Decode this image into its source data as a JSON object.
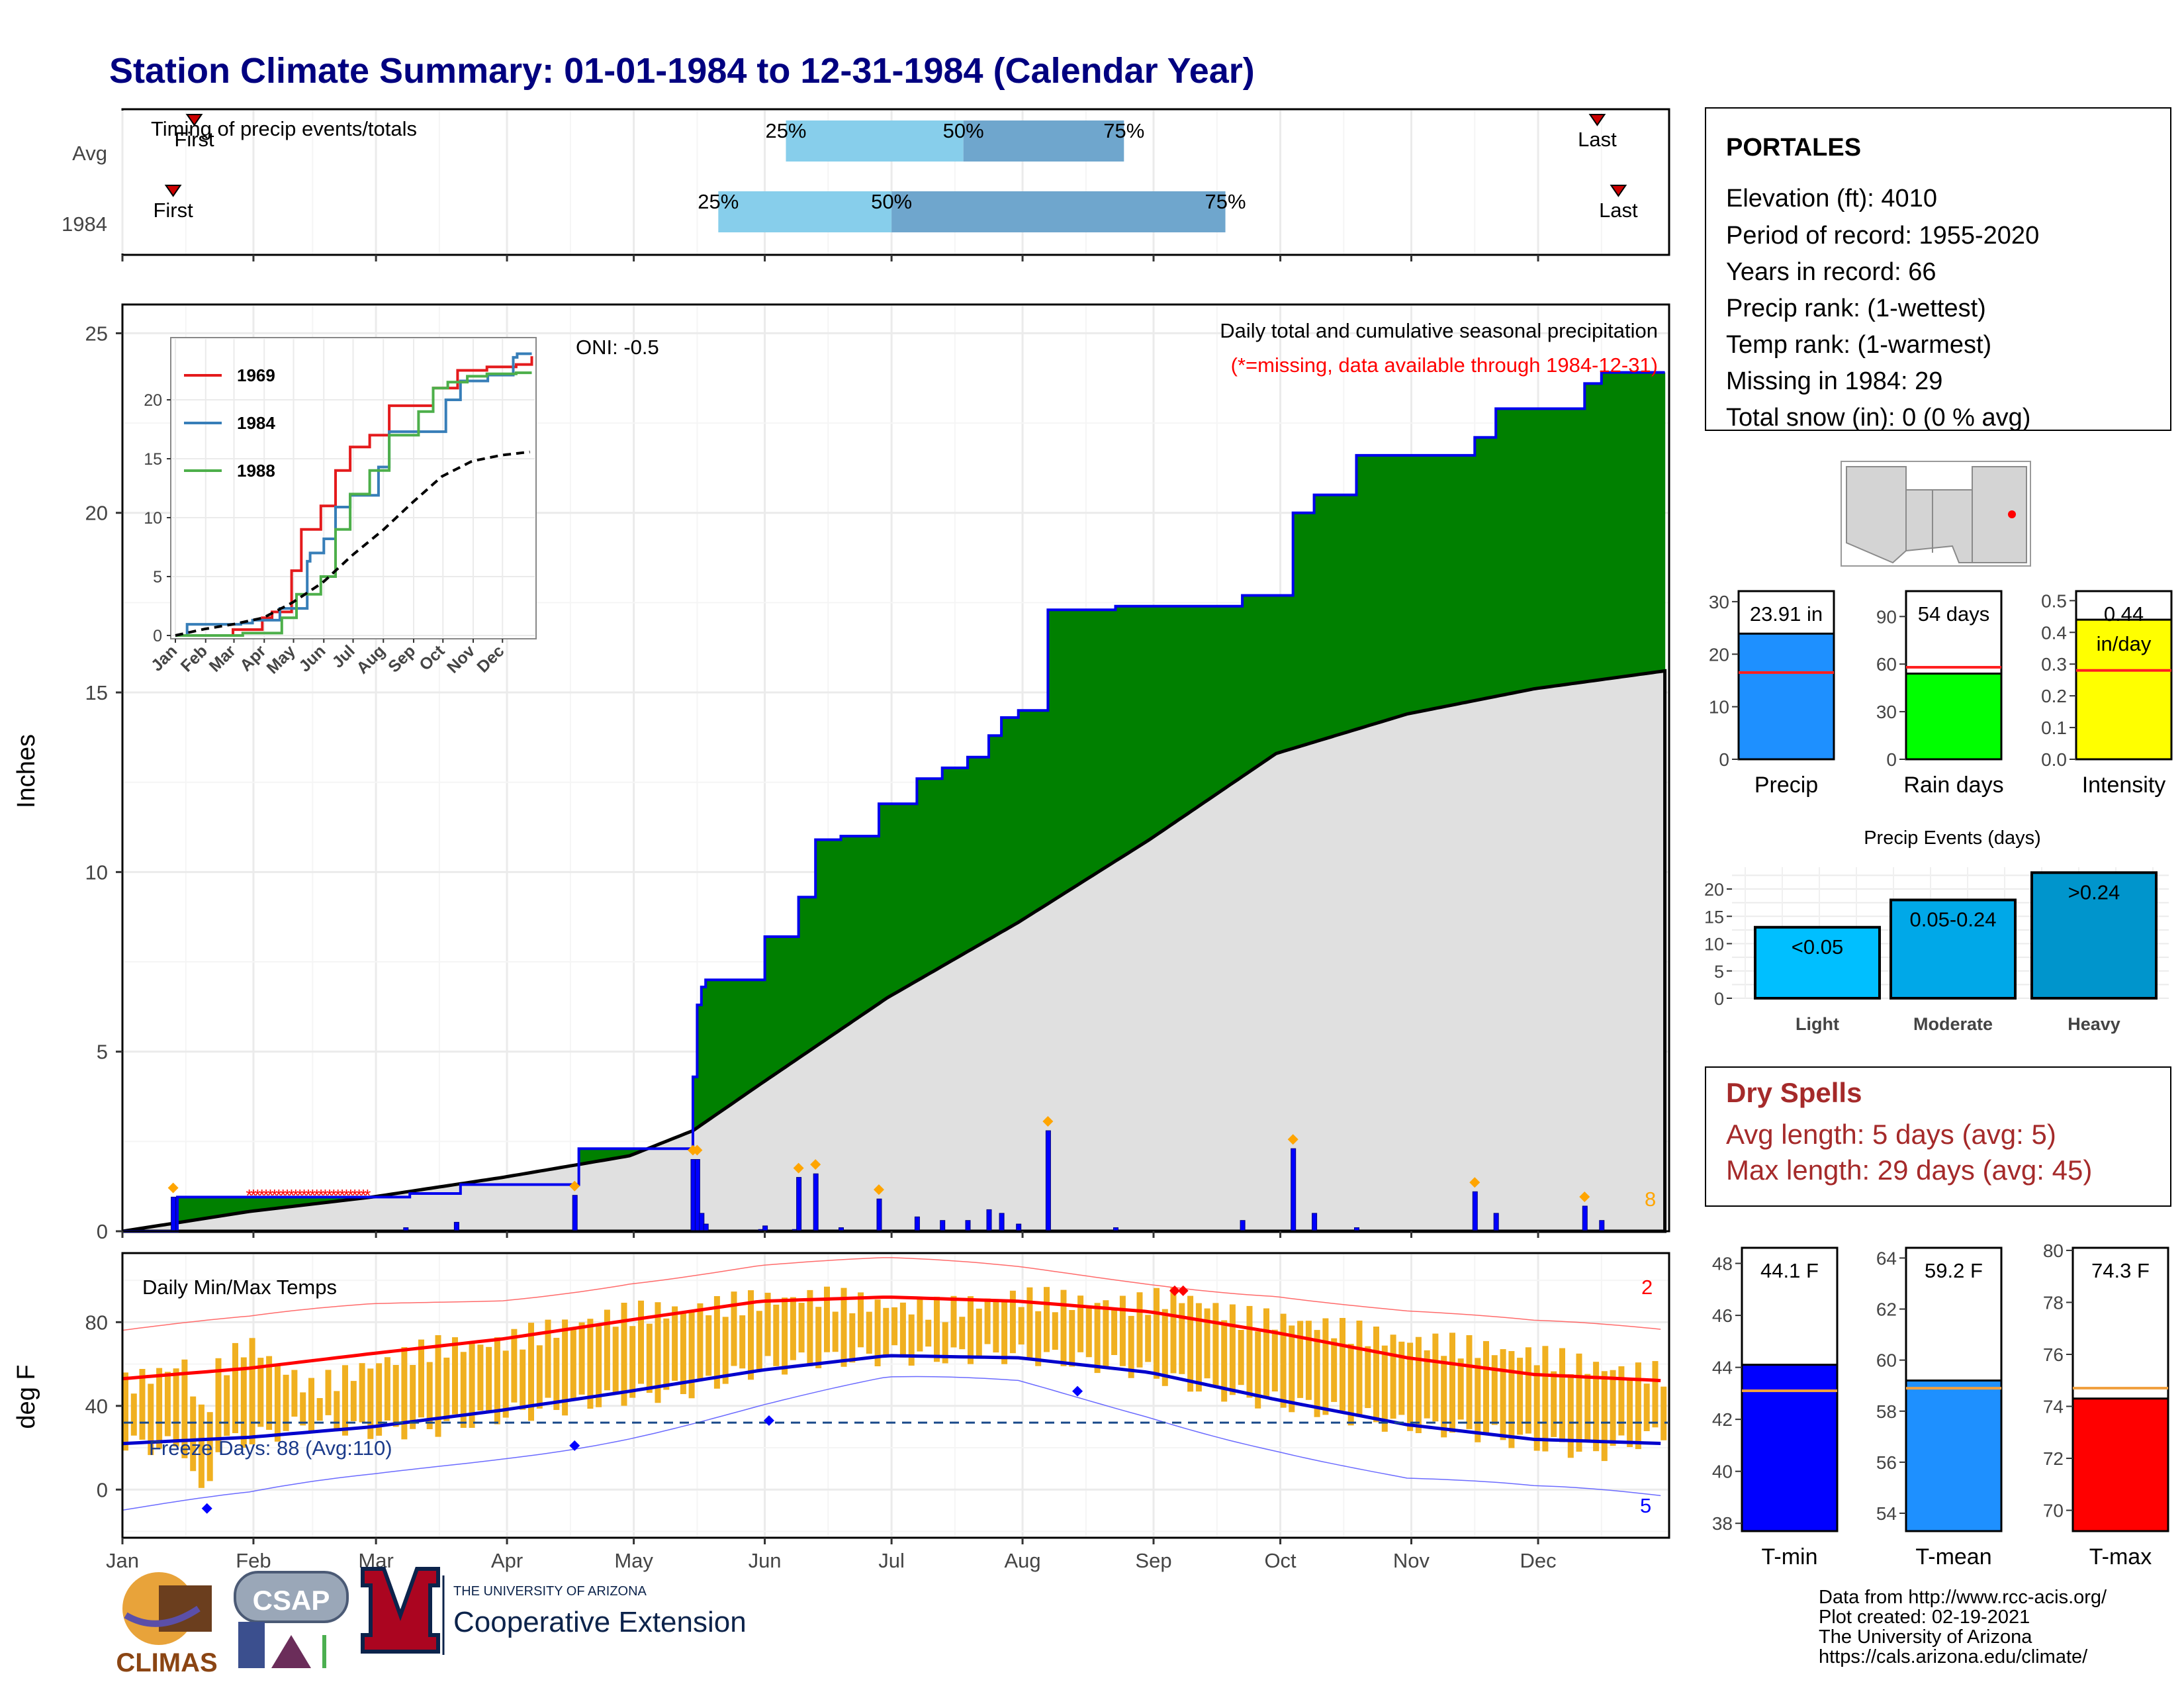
{
  "title": "Station Climate Summary: 01-01-1984 to 12-31-1984 (Calendar Year)",
  "colors": {
    "title": "#000080",
    "cum_precip_fill": "#008000",
    "avg_precip_fill": "#e0e0e0",
    "deficit_fill": "#8b5a00",
    "precip_line": "#0000ee",
    "daily_bar": "#0000ff",
    "temp_bar": "#f0b020",
    "tmax_avg_line": "#ff0000",
    "tmin_avg_line": "#0000cc",
    "marker": "#ffa500",
    "dry_spells": "#a52a2a"
  },
  "timing": {
    "label": "Timing of precip events/totals",
    "rows": [
      {
        "name": "Avg",
        "first": "First",
        "last": "Last",
        "p25": "25%",
        "p50": "50%",
        "p75": "75%",
        "first_doy": 18,
        "p25_doy": 158,
        "p50_doy": 200,
        "p75_doy": 238,
        "last_doy": 350
      },
      {
        "name": "1984",
        "first": "First",
        "last": "Last",
        "p25": "25%",
        "p50": "50%",
        "p75": "75%",
        "first_doy": 13,
        "p25_doy": 142,
        "p50_doy": 183,
        "p75_doy": 262,
        "last_doy": 355
      }
    ]
  },
  "precip_panel": {
    "subtitle": "Daily total and cumulative seasonal precipitation",
    "missing_note": "(*=missing, data available through 1984-12-31)",
    "oni": "ONI: -0.5",
    "ylabel": "Inches",
    "yticks": [
      "0",
      "5",
      "10",
      "15",
      "20",
      "25"
    ],
    "corner_count": "8"
  },
  "months": [
    "Jan",
    "Feb",
    "Mar",
    "Apr",
    "May",
    "Jun",
    "Jul",
    "Aug",
    "Sep",
    "Oct",
    "Nov",
    "Dec"
  ],
  "inset": {
    "yticks": [
      "0",
      "5",
      "10",
      "15",
      "20"
    ],
    "legend": [
      {
        "name": "1969",
        "color": "#e41a1c"
      },
      {
        "name": "1984",
        "color": "#377eb8"
      },
      {
        "name": "1988",
        "color": "#4daf4a"
      }
    ]
  },
  "temp_panel": {
    "label": "Daily Min/Max Temps",
    "ylabel": "deg F",
    "yticks": [
      "0",
      "40",
      "80"
    ],
    "freeze_days": "Freeze Days: 88 (Avg:110)",
    "count_top": "2",
    "count_bottom": "5"
  },
  "station": {
    "name": "PORTALES",
    "lines": [
      "Elevation (ft): 4010",
      "Period of record: 1955-2020",
      "Years in record: 66",
      "Precip rank:  (1-wettest)",
      "Temp rank:  (1-warmest)",
      "Missing in 1984: 29",
      "Total snow (in): 0 (0 % avg)"
    ]
  },
  "summary_bars": [
    {
      "name": "Precip",
      "value_label": "23.91 in",
      "value": 23.91,
      "avg": 16.5,
      "ymax": 32,
      "ticks": [
        "0",
        "10",
        "20",
        "30"
      ],
      "tickvals": [
        0,
        10,
        20,
        30
      ],
      "color": "#1e90ff"
    },
    {
      "name": "Rain days",
      "value_label": "54 days",
      "value": 54,
      "avg": 58,
      "ymax": 106,
      "ticks": [
        "0",
        "30",
        "60",
        "90"
      ],
      "tickvals": [
        0,
        30,
        60,
        90
      ],
      "color": "#00ff00"
    },
    {
      "name": "Intensity",
      "value_label": "0.44",
      "extra_label": "in/day",
      "value": 0.44,
      "avg": 0.28,
      "ymax": 0.53,
      "ticks": [
        "0.0",
        "0.1",
        "0.2",
        "0.3",
        "0.4",
        "0.5"
      ],
      "tickvals": [
        0,
        0.1,
        0.2,
        0.3,
        0.4,
        0.5
      ],
      "color": "#ffff00"
    }
  ],
  "events": {
    "title": "Precip Events (days)",
    "ticks": [
      "0",
      "5",
      "10",
      "15",
      "20"
    ],
    "ymax": 24,
    "categories": [
      "Light",
      "Moderate",
      "Heavy"
    ],
    "bar_labels": [
      "<0.05",
      "0.05-0.24",
      ">0.24"
    ],
    "values": [
      13,
      18,
      23
    ],
    "colors": [
      "#00bfff",
      "#00a8e8",
      "#0095cc"
    ]
  },
  "dry_spells": {
    "title": "Dry Spells",
    "avg_line": "Avg length: 5 days (avg: 5)",
    "max_line": "Max length: 29 days (avg: 45)"
  },
  "temp_bars": [
    {
      "name": "T-min",
      "value_label": "44.1 F",
      "value": 44.1,
      "avg": 43.1,
      "ymin": 37.7,
      "ymax": 48.6,
      "ticks": [
        "38",
        "40",
        "42",
        "44",
        "46",
        "48"
      ],
      "tickvals": [
        38,
        40,
        42,
        44,
        46,
        48
      ],
      "color": "#0000ff"
    },
    {
      "name": "T-mean",
      "value_label": "59.2 F",
      "value": 59.2,
      "avg": 58.9,
      "ymin": 53.3,
      "ymax": 64.4,
      "ticks": [
        "54",
        "56",
        "58",
        "60",
        "62",
        "64"
      ],
      "tickvals": [
        54,
        56,
        58,
        60,
        62,
        64
      ],
      "color": "#1e90ff"
    },
    {
      "name": "T-max",
      "value_label": "74.3 F",
      "value": 74.3,
      "avg": 74.7,
      "ymin": 69.2,
      "ymax": 80.1,
      "ticks": [
        "70",
        "72",
        "74",
        "76",
        "78",
        "80"
      ],
      "tickvals": [
        70,
        72,
        74,
        76,
        78,
        80
      ],
      "color": "#ff0000"
    }
  ],
  "footer": [
    "Data from http://www.rcc-acis.org/",
    "Plot created: 02-19-2021",
    "The University of Arizona",
    "https://cals.arizona.edu/climate/"
  ],
  "logos": {
    "climas": "CLIMAS",
    "csap": "CSAP",
    "ua_small": "THE UNIVERSITY OF ARIZONA",
    "ua_big": "Cooperative Extension"
  },
  "chart_data": [
    {
      "type": "area",
      "title": "Daily total and cumulative seasonal precipitation",
      "ylabel": "Inches",
      "ylim": [
        0,
        25.8
      ],
      "x_units": "day of year 1984",
      "cumulative_1984": {
        "x": [
          1,
          13,
          14,
          48,
          49,
          68,
          69,
          80,
          81,
          108,
          109,
          135,
          136,
          137,
          138,
          139,
          152,
          153,
          160,
          161,
          164,
          165,
          170,
          171,
          179,
          180,
          188,
          189,
          194,
          195,
          200,
          201,
          205,
          206,
          208,
          209,
          212,
          213,
          219,
          220,
          235,
          236,
          265,
          266,
          277,
          278,
          282,
          283,
          292,
          293,
          320,
          321,
          325,
          326,
          346,
          347,
          350,
          351,
          366
        ],
        "y": [
          0,
          0,
          0.95,
          0.95,
          0.95,
          0.95,
          1.05,
          1.05,
          1.3,
          1.3,
          2.3,
          2.3,
          4.3,
          6.3,
          6.8,
          7.0,
          7.0,
          8.2,
          8.2,
          9.3,
          9.3,
          10.9,
          10.9,
          11.0,
          11.0,
          11.9,
          11.9,
          12.6,
          12.6,
          12.9,
          12.9,
          13.2,
          13.2,
          13.8,
          13.8,
          14.3,
          14.3,
          14.5,
          14.5,
          17.3,
          17.3,
          17.4,
          17.4,
          17.7,
          17.7,
          20.0,
          20.0,
          20.5,
          20.5,
          21.6,
          21.6,
          22.1,
          22.1,
          22.9,
          22.9,
          23.6,
          23.6,
          23.91,
          23.91
        ]
      },
      "average_cumulative": {
        "x": [
          1,
          31,
          60,
          91,
          121,
          136,
          152,
          182,
          213,
          244,
          274,
          305,
          335,
          366
        ],
        "y": [
          0,
          0.55,
          0.95,
          1.5,
          2.1,
          2.8,
          4.1,
          6.5,
          8.6,
          10.9,
          13.3,
          14.4,
          15.1,
          15.6
        ]
      },
      "daily_precip": {
        "x": [
          13,
          68,
          80,
          108,
          136,
          137,
          138,
          139,
          152,
          153,
          160,
          161,
          165,
          171,
          180,
          189,
          195,
          201,
          206,
          209,
          213,
          220,
          236,
          266,
          278,
          283,
          293,
          321,
          326,
          347,
          351
        ],
        "y": [
          0.95,
          0.1,
          0.25,
          1.0,
          2.0,
          2.0,
          0.5,
          0.2,
          0.05,
          0.15,
          0.05,
          1.5,
          1.6,
          0.1,
          0.9,
          0.4,
          0.3,
          0.3,
          0.6,
          0.5,
          0.2,
          2.8,
          0.1,
          0.3,
          2.3,
          0.5,
          0.1,
          1.1,
          0.5,
          0.7,
          0.3
        ]
      },
      "missing_days": [
        31,
        32,
        33,
        34,
        35,
        36,
        37,
        38,
        39,
        40,
        41,
        42,
        43,
        44,
        45,
        46,
        47,
        48,
        49,
        50,
        51,
        52,
        53,
        54,
        55,
        56,
        57,
        58,
        59
      ]
    },
    {
      "type": "line",
      "title": "",
      "inset": true,
      "ylim": [
        0,
        25
      ],
      "x_units": "day of year",
      "series": [
        {
          "name": "1969",
          "x": [
            1,
            60,
            90,
            100,
            120,
            130,
            150,
            165,
            180,
            200,
            220,
            240,
            265,
            290,
            320,
            350,
            366
          ],
          "y": [
            0,
            0.5,
            1.5,
            2.0,
            5.5,
            9.0,
            11.0,
            14.0,
            16.0,
            17.0,
            19.5,
            19.5,
            21.0,
            22.5,
            22.8,
            23.0,
            23.7
          ]
        },
        {
          "name": "1984",
          "x": [
            1,
            13,
            48,
            68,
            80,
            108,
            136,
            139,
            153,
            165,
            180,
            209,
            220,
            278,
            293,
            321,
            347,
            351,
            366
          ],
          "y": [
            0,
            0.95,
            0.95,
            1.05,
            1.3,
            2.3,
            6.3,
            7.0,
            8.2,
            10.9,
            11.9,
            14.3,
            17.3,
            20.0,
            21.6,
            22.1,
            23.6,
            23.91,
            23.91
          ]
        },
        {
          "name": "1988",
          "x": [
            1,
            70,
            110,
            125,
            150,
            165,
            180,
            200,
            220,
            250,
            265,
            280,
            300,
            320,
            350,
            366
          ],
          "y": [
            0,
            0.2,
            1.5,
            3.5,
            5.0,
            9.0,
            12.0,
            14.0,
            17.0,
            19.0,
            21.0,
            21.5,
            22.0,
            22.2,
            22.3,
            22.3
          ]
        },
        {
          "name": "",
          "x": [
            1,
            31,
            60,
            91,
            121,
            152,
            182,
            213,
            244,
            274,
            305,
            335,
            366
          ],
          "y": [
            0,
            0.55,
            0.95,
            1.5,
            2.8,
            4.5,
            6.8,
            8.9,
            11.3,
            13.5,
            14.8,
            15.3,
            15.6
          ]
        }
      ]
    },
    {
      "type": "line",
      "title": "Daily Min/Max Temps",
      "ylabel": "deg F",
      "ylim": [
        -23,
        113
      ],
      "x_units": "day of year 1984",
      "freeze_threshold": 32,
      "normal_tmax": {
        "x": [
          1,
          31,
          60,
          91,
          121,
          152,
          182,
          213,
          244,
          274,
          305,
          335,
          366
        ],
        "y": [
          53,
          58,
          65,
          72,
          81,
          90,
          92,
          90,
          85,
          75,
          63,
          55,
          52
        ]
      },
      "normal_tmin": {
        "x": [
          1,
          31,
          60,
          91,
          121,
          152,
          182,
          213,
          244,
          274,
          305,
          335,
          366
        ],
        "y": [
          22,
          25,
          30,
          38,
          47,
          57,
          64,
          63,
          56,
          43,
          31,
          24,
          22
        ]
      },
      "record_tmax": {
        "x": [
          1,
          31,
          60,
          91,
          121,
          152,
          182,
          213,
          244,
          274,
          305,
          335,
          366
        ],
        "y": [
          76,
          80,
          87,
          92,
          101,
          107,
          108,
          105,
          100,
          95,
          85,
          78,
          75
        ]
      },
      "record_tmin": {
        "x": [
          1,
          31,
          60,
          91,
          121,
          152,
          182,
          213,
          244,
          274,
          305,
          335,
          366
        ],
        "y": [
          -10,
          -5,
          5,
          17,
          28,
          40,
          50,
          50,
          37,
          22,
          5,
          -2,
          -5
        ]
      },
      "daily_range_1984": {
        "x": [
          1,
          15,
          20,
          22,
          30,
          45,
          60,
          75,
          90,
          105,
          120,
          135,
          150,
          165,
          180,
          195,
          210,
          225,
          240,
          250,
          265,
          280,
          300,
          320,
          335,
          350,
          366
        ],
        "tmax": [
          50,
          60,
          30,
          55,
          70,
          48,
          60,
          68,
          70,
          78,
          84,
          86,
          90,
          92,
          88,
          86,
          92,
          90,
          88,
          93,
          82,
          80,
          72,
          68,
          64,
          58,
          55
        ],
        "tmin": [
          22,
          20,
          -10,
          22,
          24,
          32,
          28,
          30,
          36,
          40,
          45,
          48,
          58,
          62,
          64,
          64,
          65,
          62,
          58,
          52,
          45,
          40,
          32,
          28,
          22,
          18,
          28
        ]
      }
    },
    {
      "type": "bar",
      "title": "",
      "categories": [
        "Precip",
        "Rain days",
        "Intensity"
      ],
      "values": [
        23.91,
        54,
        0.44
      ],
      "averages": [
        16.5,
        58,
        0.28
      ]
    },
    {
      "type": "bar",
      "title": "Precip Events (days)",
      "categories": [
        "Light",
        "Moderate",
        "Heavy"
      ],
      "values": [
        13,
        18,
        23
      ],
      "ylim": [
        0,
        24
      ]
    },
    {
      "type": "bar",
      "title": "",
      "categories": [
        "T-min",
        "T-mean",
        "T-max"
      ],
      "values": [
        44.1,
        59.2,
        74.3
      ],
      "averages": [
        43.1,
        58.9,
        74.7
      ]
    }
  ]
}
